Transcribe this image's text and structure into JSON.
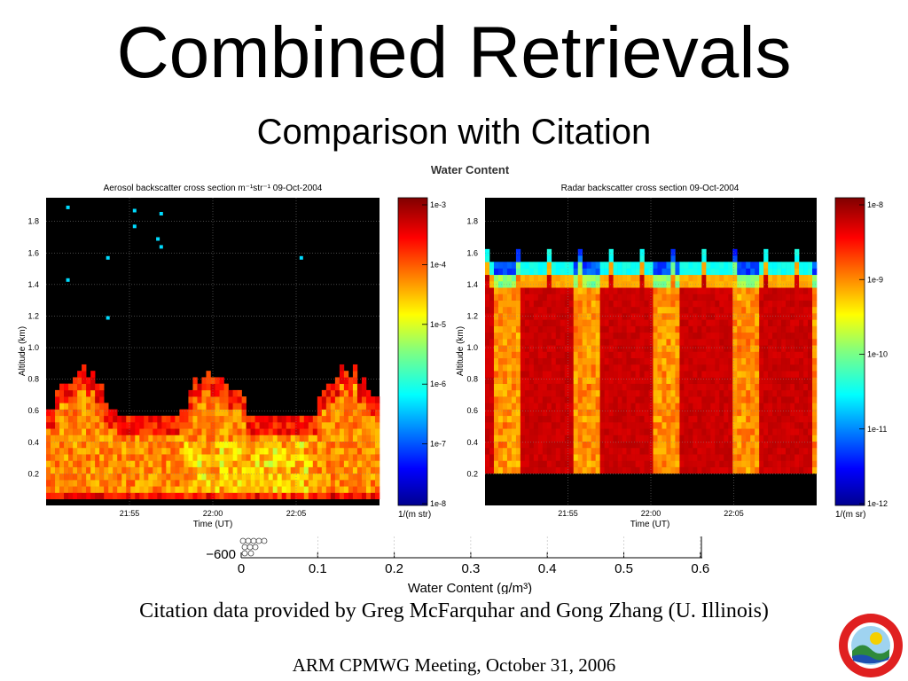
{
  "slide": {
    "title": "Combined Retrievals",
    "subtitle": "Comparison with Citation",
    "credit": "Citation data provided by Greg McFarquhar and Gong Zhang (U. Illinois)",
    "footer": "ARM CPMWG Meeting, October 31, 2006"
  },
  "background_figure": {
    "title_fragment": "Water Content",
    "xlabel": "Water Content (g/m³)",
    "xticks": [
      "0",
      "0.1",
      "0.2",
      "0.3",
      "0.4",
      "0.5",
      "0.6"
    ],
    "ytick_fragment": "−600"
  },
  "chart_data": [
    {
      "type": "heatmap",
      "title": "Aerosol backscatter cross section m⁻¹str⁻¹  09-Oct-2004",
      "xlabel": "Time (UT)",
      "ylabel": "Altitude (km)",
      "xticks": [
        "21:55",
        "22:00",
        "22:05"
      ],
      "yticks": [
        "0.2",
        "0.4",
        "0.6",
        "0.8",
        "1.0",
        "1.2",
        "1.4",
        "1.6",
        "1.8"
      ],
      "ylim": [
        0,
        1.95
      ],
      "colorbar": {
        "label": "1/(m str)",
        "ticks": [
          "1e-3",
          "1e-4",
          "1e-5",
          "1e-6",
          "1e-7",
          "1e-8"
        ],
        "range_log10": [
          -8,
          -3
        ]
      },
      "grid": true,
      "description_values": {
        "layer_top_km": 0.85,
        "layer_typical_log10": -4.3,
        "no_data_color": "#000000"
      }
    },
    {
      "type": "heatmap",
      "title": "Radar backscatter cross section  09-Oct-2004",
      "xlabel": "Time (UT)",
      "ylabel": "Altitude (km)",
      "xticks": [
        "21:55",
        "22:00",
        "22:05"
      ],
      "yticks": [
        "0.2",
        "0.4",
        "0.6",
        "0.8",
        "1.0",
        "1.2",
        "1.4",
        "1.6",
        "1.8"
      ],
      "ylim": [
        0,
        1.95
      ],
      "colorbar": {
        "label": "1/(m sr)",
        "ticks": [
          "1e-8",
          "1e-9",
          "1e-10",
          "1e-11",
          "1e-12"
        ],
        "range_log10": [
          -12,
          -7.9
        ]
      },
      "grid": true,
      "description_values": {
        "cloud_top_km": 1.55,
        "cloud_base_km": 0.2,
        "layer_typical_log10": -8.2,
        "no_data_color": "#000000"
      }
    }
  ],
  "colors": {
    "background": "#ffffff",
    "text": "#000000",
    "no_data": "#000000"
  },
  "logo": {
    "icon": "university-seal-icon"
  }
}
